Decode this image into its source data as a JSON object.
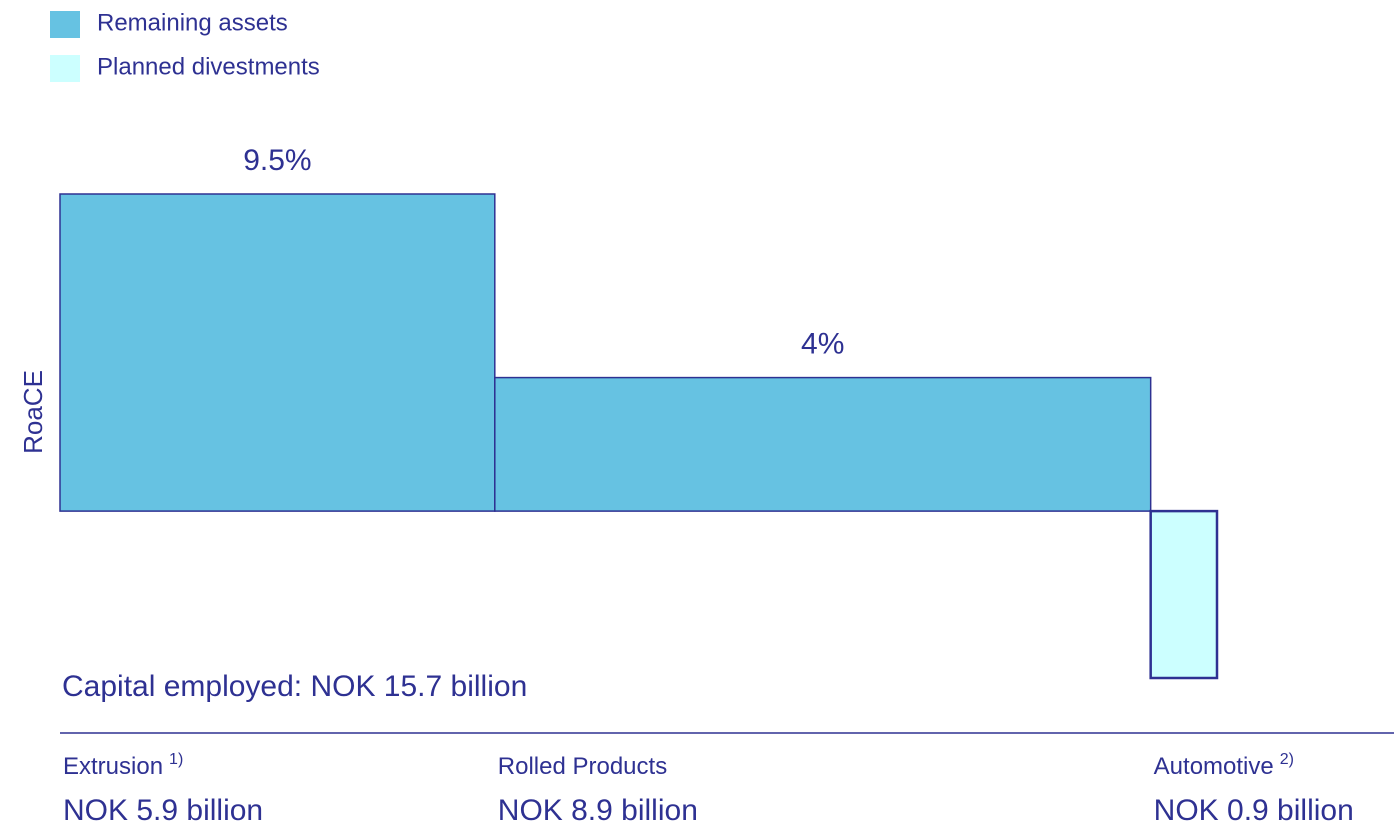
{
  "chart_data": {
    "type": "bar",
    "ylabel": "RoaCE",
    "note": "Capital employed: NOK 15.7 billion",
    "categories": [
      "Extrusion",
      "Rolled Products",
      "Automotive"
    ],
    "category_notes": [
      "1)",
      null,
      "2)"
    ],
    "series": [
      {
        "name": "Remaining assets",
        "color": "#66c2e2",
        "values": [
          9.5,
          4,
          null
        ],
        "value_labels": [
          "9.5%",
          "4%",
          null
        ]
      },
      {
        "name": "Planned divestments",
        "color": "#ccffff",
        "values": [
          null,
          null,
          -5
        ],
        "value_labels": [
          null,
          null,
          null
        ]
      }
    ],
    "capital_employed": {
      "values": [
        5.9,
        8.9,
        0.9
      ],
      "value_labels": [
        "NOK 5.9 billion",
        "NOK 8.9 billion",
        "NOK 0.9 billion"
      ]
    },
    "xlim": [
      0,
      15.7
    ],
    "ylim": [
      -5,
      9.5
    ],
    "edge_color": "#2e3192"
  }
}
